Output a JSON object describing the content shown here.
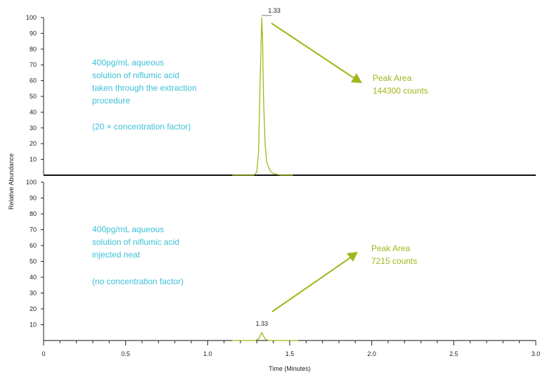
{
  "chart_data": [
    {
      "type": "line",
      "panel": "top",
      "xlabel": "Time (Minutes)",
      "ylabel": "Relative Abundance",
      "xlim": [
        0,
        3.0
      ],
      "ylim": [
        0,
        100
      ],
      "x_tick_labels": [
        "0",
        "0.5",
        "1.0",
        "1.5",
        "2.0",
        "2.5",
        "3.0"
      ],
      "y_tick_labels": [
        "10",
        "20",
        "30",
        "40",
        "50",
        "60",
        "70",
        "80",
        "90",
        "100"
      ],
      "series": [
        {
          "color": "#a4b51c",
          "x": [
            1.15,
            1.28,
            1.3,
            1.31,
            1.32,
            1.33,
            1.335,
            1.34,
            1.35,
            1.36,
            1.38,
            1.4,
            1.45,
            1.52
          ],
          "y": [
            0,
            0,
            2,
            15,
            60,
            100,
            85,
            50,
            20,
            8,
            3,
            1,
            0,
            0
          ]
        }
      ],
      "peak_label": "1.33",
      "annotations": [
        "400pg/mL aqueous",
        "solution of niflumic acid",
        "taken through the extraction",
        "procedure",
        "(20 × concentration factor)"
      ],
      "peak_area_title": "Peak Area",
      "peak_area_value": "144300 counts"
    },
    {
      "type": "line",
      "panel": "bottom",
      "xlabel": "Time (Minutes)",
      "ylabel": "Relative Abundance",
      "xlim": [
        0,
        3.0
      ],
      "ylim": [
        0,
        100
      ],
      "x_tick_labels": [
        "0",
        "0.5",
        "1.0",
        "1.5",
        "2.0",
        "2.5",
        "3.0"
      ],
      "y_tick_labels": [
        "10",
        "20",
        "30",
        "40",
        "50",
        "60",
        "70",
        "80",
        "90",
        "100"
      ],
      "series": [
        {
          "color": "#a4b51c",
          "x": [
            1.15,
            1.29,
            1.31,
            1.32,
            1.33,
            1.34,
            1.35,
            1.37,
            1.4,
            1.55
          ],
          "y": [
            0,
            0,
            1,
            3,
            5,
            3,
            1,
            0,
            0,
            0
          ]
        }
      ],
      "peak_label": "1.33",
      "annotations": [
        "400pg/mL aqueous",
        "solution of niflumic acid",
        "injected neat",
        "(no concentration factor)"
      ],
      "peak_area_title": "Peak Area",
      "peak_area_value": "7215 counts"
    }
  ]
}
